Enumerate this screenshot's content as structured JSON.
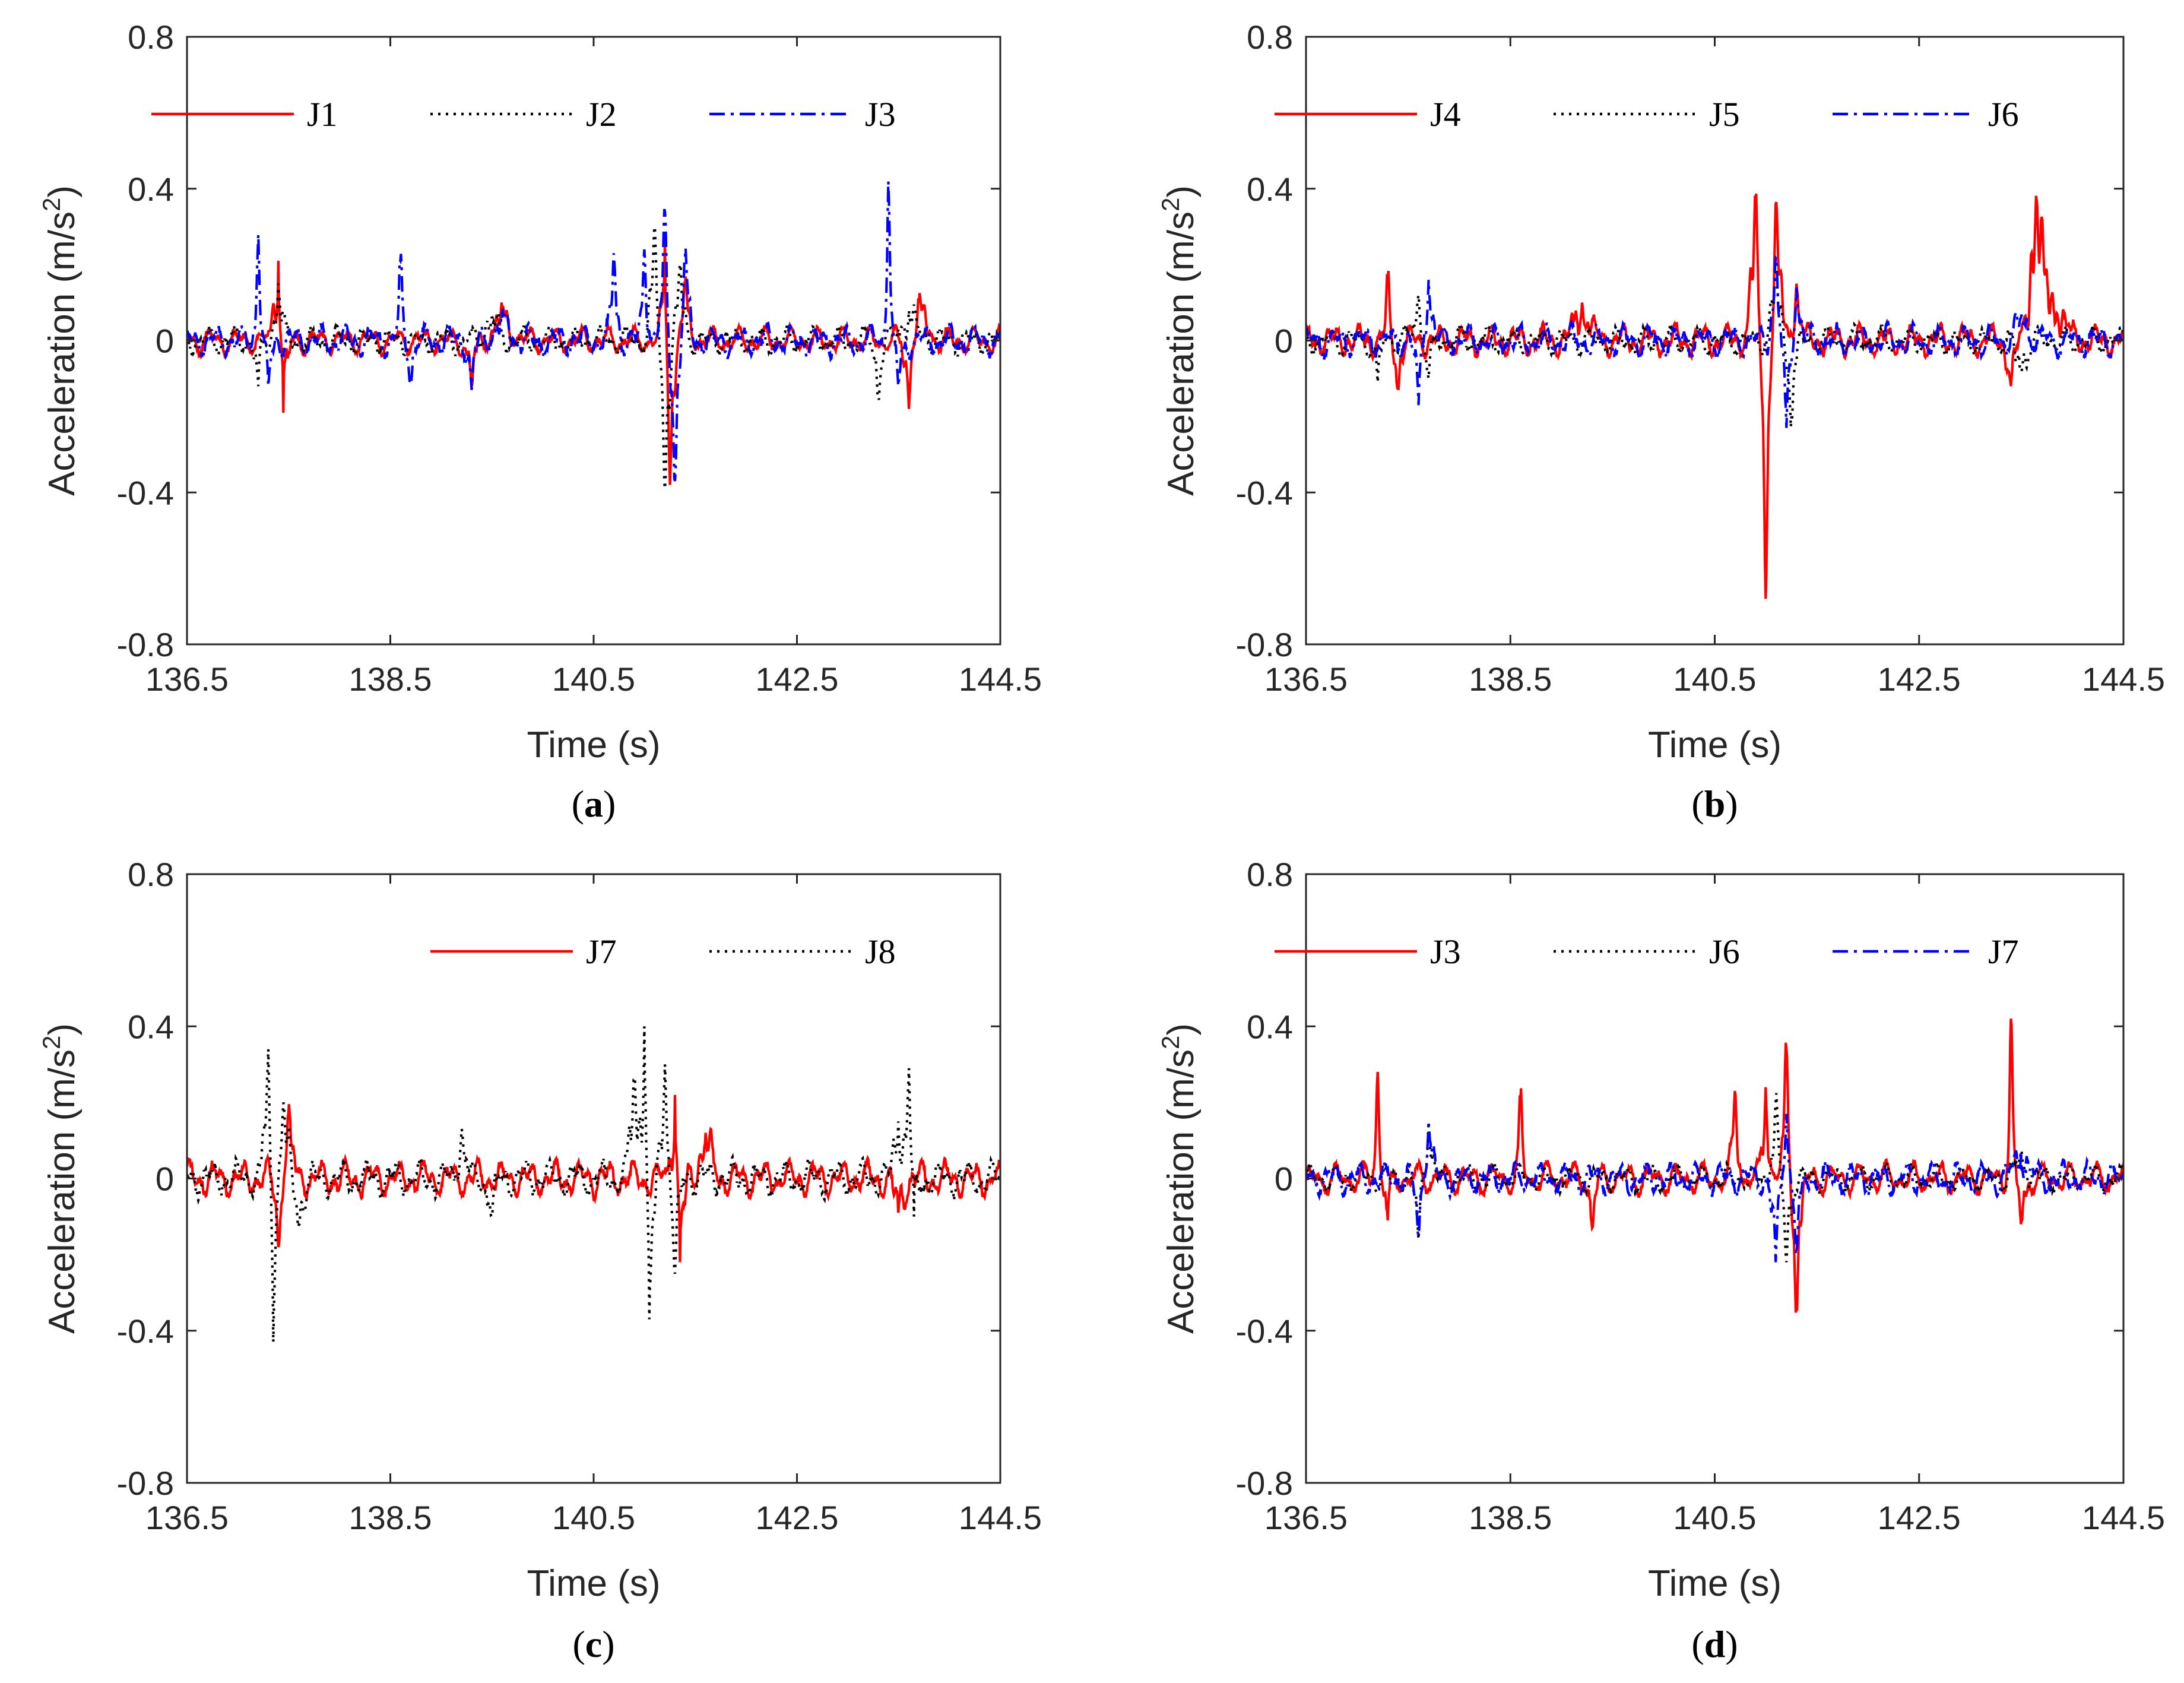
{
  "figure": {
    "panels_caption_open": "(",
    "panels_caption_close": ")"
  },
  "chart_data": [
    {
      "type": "line",
      "panel_label": "a",
      "xlabel": "Time (s)",
      "ylabel": "Acceleration (m/s",
      "ylabel_sup": "2",
      "ylabel_close": ")",
      "xlim": [
        136.5,
        144.5
      ],
      "ylim": [
        -0.8,
        0.8
      ],
      "xticks": [
        136.5,
        138.5,
        140.5,
        142.5,
        144.5
      ],
      "xtick_labels": [
        "136.5",
        "138.5",
        "140.5",
        "142.5",
        "144.5"
      ],
      "yticks": [
        -0.8,
        -0.4,
        0,
        0.4,
        0.8
      ],
      "ytick_labels": [
        "-0.8",
        "-0.4",
        "0",
        "0.4",
        "0.8"
      ],
      "legend_position": "top-right",
      "series": [
        {
          "name": "J1",
          "color": "#ff0000",
          "style": "solid",
          "seed": 11,
          "amp": 0.03,
          "events": [
            [
              137.4,
              0.21,
              0.06
            ],
            [
              137.45,
              -0.19,
              0.05
            ],
            [
              139.3,
              -0.12,
              0.05
            ],
            [
              139.6,
              0.08,
              0.1
            ],
            [
              141.2,
              0.28,
              0.04
            ],
            [
              141.25,
              -0.38,
              0.05
            ],
            [
              141.4,
              0.15,
              0.05
            ],
            [
              143.6,
              -0.18,
              0.05
            ],
            [
              143.7,
              0.1,
              0.1
            ]
          ]
        },
        {
          "name": "J2",
          "color": "#000000",
          "style": "dotted",
          "seed": 23,
          "amp": 0.03,
          "events": [
            [
              137.2,
              -0.12,
              0.04
            ],
            [
              137.4,
              0.15,
              0.05
            ],
            [
              139.5,
              0.06,
              0.1
            ],
            [
              141.1,
              0.3,
              0.05
            ],
            [
              141.2,
              -0.39,
              0.05
            ],
            [
              141.35,
              0.2,
              0.05
            ],
            [
              143.3,
              -0.15,
              0.04
            ],
            [
              143.6,
              0.08,
              0.1
            ]
          ]
        },
        {
          "name": "J3",
          "color": "#0000ff",
          "style": "dashdot",
          "seed": 37,
          "amp": 0.035,
          "events": [
            [
              137.2,
              0.28,
              0.03
            ],
            [
              137.3,
              -0.12,
              0.04
            ],
            [
              138.6,
              0.21,
              0.03
            ],
            [
              138.7,
              -0.1,
              0.04
            ],
            [
              139.3,
              -0.13,
              0.04
            ],
            [
              139.6,
              0.06,
              0.1
            ],
            [
              140.7,
              0.23,
              0.04
            ],
            [
              141.0,
              0.24,
              0.04
            ],
            [
              141.2,
              0.34,
              0.04
            ],
            [
              141.3,
              -0.37,
              0.05
            ],
            [
              141.4,
              0.22,
              0.05
            ],
            [
              143.4,
              0.42,
              0.03
            ],
            [
              143.5,
              -0.12,
              0.05
            ]
          ]
        }
      ]
    },
    {
      "type": "line",
      "panel_label": "b",
      "xlabel": "Time (s)",
      "ylabel": "Acceleration (m/s",
      "ylabel_sup": "2",
      "ylabel_close": ")",
      "xlim": [
        136.5,
        144.5
      ],
      "ylim": [
        -0.8,
        0.8
      ],
      "xticks": [
        136.5,
        138.5,
        140.5,
        142.5,
        144.5
      ],
      "xtick_labels": [
        "136.5",
        "138.5",
        "140.5",
        "142.5",
        "144.5"
      ],
      "yticks": [
        -0.8,
        -0.4,
        0,
        0.4,
        0.8
      ],
      "ytick_labels": [
        "-0.8",
        "-0.4",
        "0",
        "0.4",
        "0.8"
      ],
      "legend_position": "top-right",
      "series": [
        {
          "name": "J4",
          "color": "#ff0000",
          "style": "solid",
          "seed": 41,
          "amp": 0.035,
          "events": [
            [
              137.3,
              0.16,
              0.03
            ],
            [
              137.4,
              -0.12,
              0.04
            ],
            [
              139.2,
              0.1,
              0.1
            ],
            [
              140.9,
              0.38,
              0.06
            ],
            [
              141.0,
              -0.68,
              0.05
            ],
            [
              141.1,
              0.36,
              0.06
            ],
            [
              141.3,
              0.15,
              0.05
            ],
            [
              143.4,
              -0.12,
              0.05
            ],
            [
              143.65,
              0.37,
              0.08
            ],
            [
              143.8,
              0.12,
              0.15
            ]
          ]
        },
        {
          "name": "J5",
          "color": "#000000",
          "style": "dotted",
          "seed": 53,
          "amp": 0.03,
          "events": [
            [
              137.2,
              -0.11,
              0.04
            ],
            [
              137.6,
              0.12,
              0.05
            ],
            [
              137.7,
              -0.1,
              0.05
            ],
            [
              141.1,
              0.18,
              0.06
            ],
            [
              141.25,
              -0.2,
              0.05
            ],
            [
              143.5,
              -0.08,
              0.08
            ]
          ]
        },
        {
          "name": "J6",
          "color": "#0000ff",
          "style": "dashdot",
          "seed": 67,
          "amp": 0.035,
          "events": [
            [
              137.6,
              -0.17,
              0.04
            ],
            [
              137.7,
              0.16,
              0.05
            ],
            [
              141.1,
              0.22,
              0.05
            ],
            [
              141.2,
              -0.23,
              0.05
            ],
            [
              141.3,
              0.14,
              0.05
            ],
            [
              143.5,
              0.06,
              0.1
            ]
          ]
        }
      ]
    },
    {
      "type": "line",
      "panel_label": "c",
      "xlabel": "Time (s)",
      "ylabel": "Acceleration (m/s",
      "ylabel_sup": "2",
      "ylabel_close": ")",
      "xlim": [
        136.5,
        144.5
      ],
      "ylim": [
        -0.8,
        0.8
      ],
      "xticks": [
        136.5,
        138.5,
        140.5,
        142.5,
        144.5
      ],
      "xtick_labels": [
        "136.5",
        "138.5",
        "140.5",
        "142.5",
        "144.5"
      ],
      "yticks": [
        -0.8,
        -0.4,
        0,
        0.4,
        0.8
      ],
      "ytick_labels": [
        "-0.8",
        "-0.4",
        "0",
        "0.4",
        "0.8"
      ],
      "legend_position": "top-right",
      "series": [
        {
          "name": "J7",
          "color": "#ff0000",
          "style": "solid",
          "seed": 71,
          "amp": 0.04,
          "events": [
            [
              137.4,
              -0.18,
              0.04
            ],
            [
              137.5,
              0.17,
              0.05
            ],
            [
              141.3,
              0.22,
              0.05
            ],
            [
              141.35,
              -0.22,
              0.05
            ],
            [
              141.6,
              0.12,
              0.08
            ],
            [
              143.5,
              -0.09,
              0.06
            ]
          ]
        },
        {
          "name": "J8",
          "color": "#000000",
          "style": "dotted",
          "seed": 83,
          "amp": 0.04,
          "events": [
            [
              137.3,
              0.34,
              0.05
            ],
            [
              137.35,
              -0.43,
              0.04
            ],
            [
              137.45,
              0.2,
              0.06
            ],
            [
              137.6,
              -0.12,
              0.06
            ],
            [
              139.2,
              0.13,
              0.05
            ],
            [
              139.5,
              -0.1,
              0.05
            ],
            [
              140.9,
              0.26,
              0.06
            ],
            [
              141.0,
              0.4,
              0.04
            ],
            [
              141.05,
              -0.37,
              0.05
            ],
            [
              141.2,
              0.3,
              0.05
            ],
            [
              141.3,
              -0.25,
              0.05
            ],
            [
              143.5,
              0.15,
              0.06
            ],
            [
              143.6,
              0.29,
              0.04
            ],
            [
              143.65,
              -0.1,
              0.05
            ]
          ]
        }
      ]
    },
    {
      "type": "line",
      "panel_label": "d",
      "xlabel": "Time (s)",
      "ylabel": "Acceleration (m/s",
      "ylabel_sup": "2",
      "ylabel_close": ")",
      "xlim": [
        136.5,
        144.5
      ],
      "ylim": [
        -0.8,
        0.8
      ],
      "xticks": [
        136.5,
        138.5,
        140.5,
        142.5,
        144.5
      ],
      "xtick_labels": [
        "136.5",
        "138.5",
        "140.5",
        "142.5",
        "144.5"
      ],
      "yticks": [
        -0.8,
        -0.4,
        0,
        0.4,
        0.8
      ],
      "ytick_labels": [
        "-0.8",
        "-0.4",
        "0",
        "0.4",
        "0.8"
      ],
      "legend_position": "top-right",
      "series": [
        {
          "name": "J3",
          "color": "#ff0000",
          "style": "solid",
          "seed": 97,
          "amp": 0.035,
          "events": [
            [
              137.2,
              0.28,
              0.03
            ],
            [
              137.3,
              -0.11,
              0.04
            ],
            [
              138.6,
              0.21,
              0.03
            ],
            [
              139.3,
              -0.13,
              0.04
            ],
            [
              140.7,
              0.23,
              0.04
            ],
            [
              141.0,
              0.24,
              0.04
            ],
            [
              141.2,
              0.34,
              0.04
            ],
            [
              141.3,
              -0.34,
              0.05
            ],
            [
              143.4,
              0.42,
              0.03
            ],
            [
              143.5,
              -0.12,
              0.05
            ]
          ]
        },
        {
          "name": "J6",
          "color": "#000000",
          "style": "dotted",
          "seed": 101,
          "amp": 0.03,
          "events": [
            [
              137.6,
              -0.16,
              0.04
            ],
            [
              137.7,
              0.15,
              0.05
            ],
            [
              141.1,
              0.2,
              0.05
            ],
            [
              141.2,
              -0.22,
              0.05
            ],
            [
              143.5,
              0.05,
              0.1
            ]
          ]
        },
        {
          "name": "J7",
          "color": "#0000ff",
          "style": "dashdot",
          "seed": 113,
          "amp": 0.035,
          "events": [
            [
              137.6,
              -0.15,
              0.04
            ],
            [
              137.7,
              0.14,
              0.05
            ],
            [
              141.1,
              -0.22,
              0.05
            ],
            [
              141.2,
              0.17,
              0.05
            ],
            [
              141.3,
              -0.2,
              0.05
            ],
            [
              143.5,
              0.07,
              0.1
            ]
          ]
        }
      ]
    }
  ]
}
